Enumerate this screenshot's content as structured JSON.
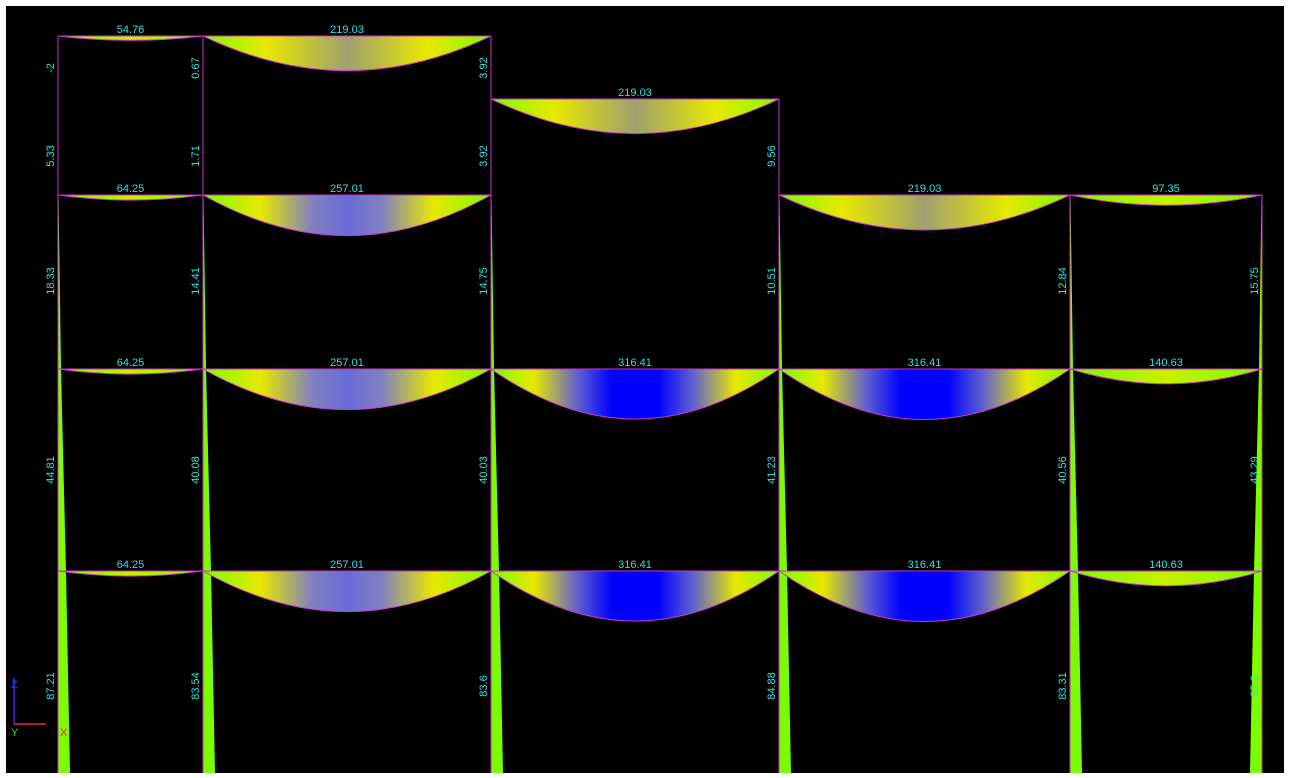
{
  "diagram": {
    "colors": {
      "background": "#000000",
      "frame_line": "#cc33cc",
      "label": "#33e0e0",
      "moment_low": "#7cfc00",
      "moment_mid": "#e8e800",
      "moment_high": "#0000ff"
    },
    "beams": [
      {
        "id": "r1-b1",
        "label": "54.76",
        "value": 54.76
      },
      {
        "id": "r1-b2",
        "label": "219.03",
        "value": 219.03
      },
      {
        "id": "r2-b3",
        "label": "219.03",
        "value": 219.03
      },
      {
        "id": "r3-b1",
        "label": "64.25",
        "value": 64.25
      },
      {
        "id": "r3-b2",
        "label": "257.01",
        "value": 257.01
      },
      {
        "id": "r3-b4",
        "label": "219.03",
        "value": 219.03
      },
      {
        "id": "r3-b5",
        "label": "97.35",
        "value": 97.35
      },
      {
        "id": "r4-b1",
        "label": "64.25",
        "value": 64.25
      },
      {
        "id": "r4-b2",
        "label": "257.01",
        "value": 257.01
      },
      {
        "id": "r4-b3",
        "label": "316.41",
        "value": 316.41
      },
      {
        "id": "r4-b4",
        "label": "316.41",
        "value": 316.41
      },
      {
        "id": "r4-b5",
        "label": "140.63",
        "value": 140.63
      },
      {
        "id": "r5-b1",
        "label": "64.25",
        "value": 64.25
      },
      {
        "id": "r5-b2",
        "label": "257.01",
        "value": 257.01
      },
      {
        "id": "r5-b3",
        "label": "316.41",
        "value": 316.41
      },
      {
        "id": "r5-b4",
        "label": "316.41",
        "value": 316.41
      },
      {
        "id": "r5-b5",
        "label": "140.63",
        "value": 140.63
      }
    ],
    "columns": [
      {
        "id": "c1-top-a",
        "label": "-2"
      },
      {
        "id": "c1-top-b",
        "label": "5.33"
      },
      {
        "id": "c2-top-a",
        "label": "0.67"
      },
      {
        "id": "c2-top-b",
        "label": "1.71"
      },
      {
        "id": "c3-top-a",
        "label": "3.92"
      },
      {
        "id": "c3-top-b",
        "label": "3.92"
      },
      {
        "id": "c4-top",
        "label": "9.56"
      },
      {
        "id": "s2-c1",
        "label": "18.33"
      },
      {
        "id": "s2-c2",
        "label": "14.41"
      },
      {
        "id": "s2-c3",
        "label": "14.75"
      },
      {
        "id": "s2-c4",
        "label": "10.51"
      },
      {
        "id": "s2-c5",
        "label": "12.84"
      },
      {
        "id": "s2-c6",
        "label": "15.75"
      },
      {
        "id": "s3-c1",
        "label": "44.81"
      },
      {
        "id": "s3-c2",
        "label": "40.08"
      },
      {
        "id": "s3-c3",
        "label": "40.03"
      },
      {
        "id": "s3-c4",
        "label": "41.23"
      },
      {
        "id": "s3-c5",
        "label": "40.56"
      },
      {
        "id": "s3-c6",
        "label": "43.29"
      },
      {
        "id": "s4-c1",
        "label": "87.21"
      },
      {
        "id": "s4-c2",
        "label": "83.54"
      },
      {
        "id": "s4-c3",
        "label": "83.6"
      },
      {
        "id": "s4-c4",
        "label": "84.88"
      },
      {
        "id": "s4-c5",
        "label": "83.31"
      },
      {
        "id": "s4-c6",
        "label": "85.2"
      }
    ],
    "axes": {
      "z": "Z",
      "y": "Y",
      "x": "X"
    }
  }
}
